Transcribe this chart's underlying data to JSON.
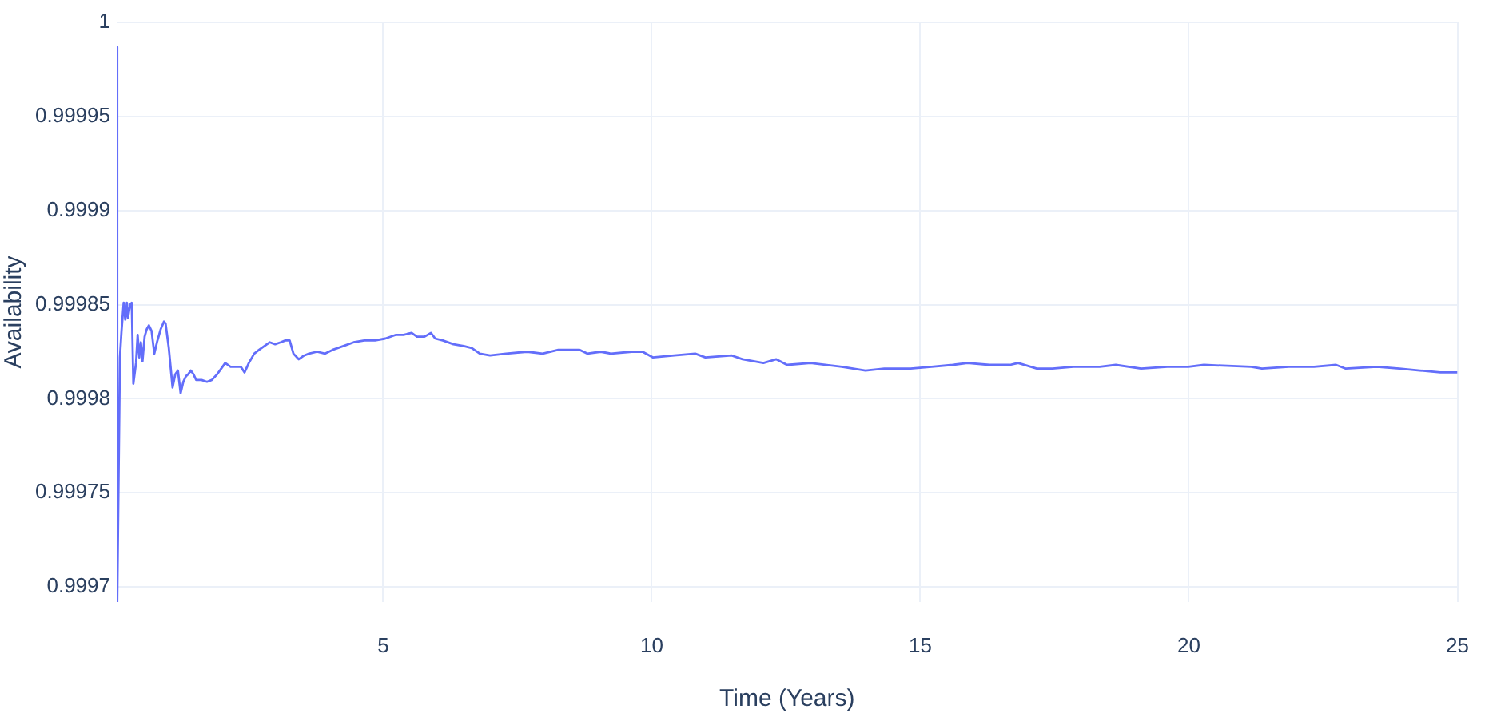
{
  "chart_data": {
    "type": "line",
    "xlabel": "Time (Years)",
    "ylabel": "Availability",
    "xlim": [
      0.04,
      25
    ],
    "xticks": [
      5,
      10,
      15,
      20,
      25
    ],
    "ylim": [
      0.999692,
      1
    ],
    "yticks": [
      0.9997,
      0.99975,
      0.9998,
      0.99985,
      0.9999,
      0.99995,
      1
    ],
    "grid": true,
    "x": [
      0.04,
      0.05,
      0.1,
      0.13,
      0.17,
      0.2,
      0.23,
      0.25,
      0.29,
      0.32,
      0.35,
      0.4,
      0.43,
      0.46,
      0.49,
      0.52,
      0.56,
      0.6,
      0.64,
      0.69,
      0.74,
      0.79,
      0.86,
      0.92,
      0.95,
      1.01,
      1.08,
      1.13,
      1.18,
      1.23,
      1.28,
      1.33,
      1.37,
      1.42,
      1.47,
      1.52,
      1.62,
      1.72,
      1.81,
      1.91,
      2.01,
      2.06,
      2.16,
      2.25,
      2.35,
      2.42,
      2.5,
      2.6,
      2.69,
      2.79,
      2.89,
      2.99,
      3.09,
      3.18,
      3.26,
      3.33,
      3.43,
      3.53,
      3.62,
      3.77,
      3.92,
      4.06,
      4.26,
      4.45,
      4.65,
      4.85,
      5.04,
      5.24,
      5.38,
      5.53,
      5.63,
      5.77,
      5.89,
      5.97,
      6.11,
      6.31,
      6.5,
      6.65,
      6.8,
      6.99,
      7.29,
      7.68,
      7.97,
      8.26,
      8.66,
      8.8,
      9.05,
      9.24,
      9.63,
      9.83,
      10.02,
      10.42,
      10.81,
      11,
      11.49,
      11.69,
      12.08,
      12.32,
      12.52,
      12.96,
      13.54,
      13.98,
      14.33,
      14.82,
      15.21,
      15.6,
      15.88,
      16.29,
      16.67,
      16.82,
      17.17,
      17.46,
      17.85,
      18.34,
      18.64,
      19.11,
      19.6,
      19.99,
      20.28,
      21.16,
      21.36,
      21.86,
      22.33,
      22.74,
      22.92,
      23.5,
      23.92,
      24.3,
      24.68,
      25
    ],
    "series": [
      {
        "color": "#636efa",
        "values": [
          0.999987,
          0.999692,
          0.999822,
          0.999836,
          0.999851,
          0.999842,
          0.999851,
          0.999843,
          0.99985,
          0.999851,
          0.999808,
          0.999819,
          0.999834,
          0.999822,
          0.99983,
          0.99982,
          0.999833,
          0.999837,
          0.999839,
          0.999836,
          0.999824,
          0.99983,
          0.999837,
          0.999841,
          0.99984,
          0.999827,
          0.999806,
          0.999813,
          0.999815,
          0.999803,
          0.999809,
          0.999812,
          0.999813,
          0.999815,
          0.999813,
          0.99981,
          0.99981,
          0.999809,
          0.99981,
          0.999813,
          0.999817,
          0.999819,
          0.999817,
          0.999817,
          0.999817,
          0.999814,
          0.999819,
          0.999824,
          0.999826,
          0.999828,
          0.99983,
          0.999829,
          0.99983,
          0.999831,
          0.999831,
          0.999824,
          0.999821,
          0.999823,
          0.999824,
          0.999825,
          0.999824,
          0.999826,
          0.999828,
          0.99983,
          0.999831,
          0.999831,
          0.999832,
          0.999834,
          0.999834,
          0.999835,
          0.999833,
          0.999833,
          0.999835,
          0.999832,
          0.999831,
          0.999829,
          0.999828,
          0.999827,
          0.999824,
          0.999823,
          0.999824,
          0.999825,
          0.999824,
          0.999826,
          0.999826,
          0.999824,
          0.999825,
          0.999824,
          0.999825,
          0.999825,
          0.999822,
          0.999823,
          0.999824,
          0.999822,
          0.999823,
          0.999821,
          0.999819,
          0.999821,
          0.999818,
          0.999819,
          0.999817,
          0.999815,
          0.999816,
          0.999816,
          0.999817,
          0.999818,
          0.999819,
          0.999818,
          0.999818,
          0.999819,
          0.999816,
          0.999816,
          0.999817,
          0.999817,
          0.999818,
          0.999816,
          0.999817,
          0.999817,
          0.999818,
          0.999817,
          0.999816,
          0.999817,
          0.999817,
          0.999818,
          0.999816,
          0.999817,
          0.999816,
          0.999815,
          0.999814,
          0.999814
        ]
      }
    ]
  }
}
